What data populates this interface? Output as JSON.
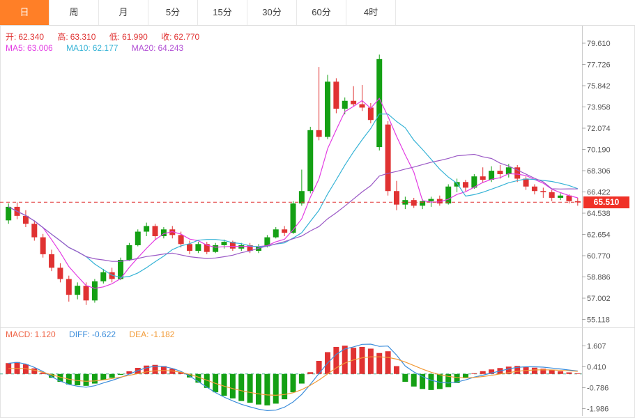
{
  "toolbar": {
    "tabs": [
      {
        "label": "日",
        "active": true
      },
      {
        "label": "周",
        "active": false
      },
      {
        "label": "月",
        "active": false
      },
      {
        "label": "5分",
        "active": false
      },
      {
        "label": "15分",
        "active": false
      },
      {
        "label": "30分",
        "active": false
      },
      {
        "label": "60分",
        "active": false
      },
      {
        "label": "4时",
        "active": false
      }
    ]
  },
  "readout": {
    "ohlc": {
      "open_label": "开:",
      "open": "62.340",
      "high_label": "高:",
      "high": "63.310",
      "low_label": "低:",
      "low": "61.990",
      "close_label": "收:",
      "close": "62.770"
    },
    "ma": {
      "ma5_label": "MA5:",
      "ma5": "63.006",
      "ma10_label": "MA10:",
      "ma10": "62.177",
      "ma20_label": "MA20:",
      "ma20": "64.243"
    },
    "macd": {
      "macd_label": "MACD:",
      "macd": "1.120",
      "diff_label": "DIFF:",
      "diff": "-0.622",
      "dea_label": "DEA:",
      "dea": "-1.182"
    }
  },
  "price_axis": {
    "last_price": "65.510"
  },
  "colors": {
    "up": "#14a014",
    "down": "#e03232",
    "ma5": "#e33ce3",
    "ma10": "#36b3d6",
    "ma20": "#9b59c6",
    "diff": "#3d8edb",
    "dea": "#f29b38",
    "macd_pos": "#e03232",
    "macd_neg": "#14a014",
    "last_price_line": "#e03232",
    "badge_bg": "#f03127",
    "zero_line": "#48b094",
    "axis": "#cccccc",
    "label": "#555555",
    "tab_active_bg": "#ff7f27"
  },
  "chart_data": [
    {
      "type": "candlestick",
      "name": "price-panel",
      "legend": [
        "MA5",
        "MA10",
        "MA20"
      ],
      "ma_periods": [
        5,
        10,
        20
      ],
      "axis_ticks": [
        79.61,
        77.726,
        75.842,
        73.958,
        72.074,
        70.19,
        68.306,
        66.422,
        64.538,
        62.654,
        60.77,
        58.886,
        57.002,
        55.118
      ],
      "ylim": [
        55.118,
        79.61
      ],
      "grid": false,
      "last_price": 65.51,
      "ohlc": [
        [
          63.9,
          65.4,
          63.6,
          65.1
        ],
        [
          65.1,
          65.5,
          64.0,
          64.3
        ],
        [
          64.3,
          64.8,
          63.3,
          63.6
        ],
        [
          63.6,
          63.9,
          62.1,
          62.4
        ],
        [
          62.4,
          62.7,
          60.6,
          60.9
        ],
        [
          60.9,
          61.3,
          59.4,
          59.7
        ],
        [
          59.7,
          60.1,
          58.4,
          58.7
        ],
        [
          58.7,
          59.0,
          56.7,
          57.3
        ],
        [
          57.3,
          58.4,
          56.9,
          58.1
        ],
        [
          58.1,
          58.4,
          56.4,
          56.8
        ],
        [
          56.8,
          58.7,
          56.6,
          58.5
        ],
        [
          58.5,
          59.6,
          58.3,
          59.3
        ],
        [
          59.3,
          59.7,
          58.4,
          58.7
        ],
        [
          58.7,
          60.6,
          58.6,
          60.4
        ],
        [
          60.4,
          61.9,
          60.3,
          61.7
        ],
        [
          61.7,
          63.1,
          61.6,
          62.9
        ],
        [
          62.9,
          63.7,
          62.5,
          63.4
        ],
        [
          63.4,
          63.6,
          62.2,
          62.5
        ],
        [
          62.5,
          63.3,
          62.3,
          63.1
        ],
        [
          63.1,
          63.4,
          62.3,
          62.6
        ],
        [
          62.6,
          62.9,
          61.5,
          61.8
        ],
        [
          61.8,
          62.1,
          60.9,
          61.2
        ],
        [
          61.2,
          62.0,
          61.0,
          61.8
        ],
        [
          61.8,
          62.0,
          60.9,
          61.1
        ],
        [
          61.1,
          61.9,
          61.0,
          61.7
        ],
        [
          61.7,
          62.2,
          61.4,
          62.0
        ],
        [
          62.0,
          62.1,
          61.2,
          61.4
        ],
        [
          61.4,
          61.9,
          61.2,
          61.7
        ],
        [
          61.7,
          61.9,
          61.0,
          61.2
        ],
        [
          61.2,
          61.8,
          61.0,
          61.6
        ],
        [
          61.6,
          62.6,
          61.5,
          62.4
        ],
        [
          62.4,
          63.3,
          62.3,
          63.1
        ],
        [
          63.1,
          63.4,
          62.5,
          62.8
        ],
        [
          62.8,
          65.6,
          62.7,
          65.4
        ],
        [
          65.4,
          68.4,
          65.2,
          66.5
        ],
        [
          66.5,
          72.2,
          66.3,
          71.9
        ],
        [
          71.9,
          77.5,
          71.0,
          71.3
        ],
        [
          71.3,
          76.8,
          71.1,
          76.2
        ],
        [
          76.2,
          76.5,
          73.4,
          73.8
        ],
        [
          73.8,
          74.8,
          73.3,
          74.5
        ],
        [
          74.5,
          75.8,
          74.0,
          74.2
        ],
        [
          74.2,
          75.9,
          73.6,
          73.9
        ],
        [
          73.9,
          74.3,
          72.5,
          72.8
        ],
        [
          70.4,
          78.6,
          70.1,
          78.2
        ],
        [
          72.4,
          72.7,
          66.1,
          66.5
        ],
        [
          66.5,
          67.4,
          64.8,
          65.3
        ],
        [
          65.3,
          66.0,
          64.9,
          65.7
        ],
        [
          65.7,
          65.9,
          65.0,
          65.2
        ],
        [
          65.2,
          65.8,
          64.9,
          65.6
        ],
        [
          65.6,
          66.0,
          65.1,
          65.8
        ],
        [
          65.8,
          66.1,
          65.2,
          65.4
        ],
        [
          65.4,
          67.1,
          65.3,
          66.9
        ],
        [
          66.9,
          67.6,
          66.4,
          67.3
        ],
        [
          67.3,
          67.5,
          66.5,
          66.8
        ],
        [
          66.8,
          68.0,
          66.7,
          67.8
        ],
        [
          67.8,
          68.6,
          67.2,
          67.5
        ],
        [
          67.5,
          68.7,
          67.3,
          68.3
        ],
        [
          68.3,
          68.8,
          67.6,
          68.0
        ],
        [
          68.0,
          68.9,
          67.7,
          68.6
        ],
        [
          68.6,
          68.8,
          67.3,
          67.6
        ],
        [
          67.6,
          67.8,
          66.6,
          66.9
        ],
        [
          66.9,
          67.1,
          66.2,
          66.5
        ],
        [
          66.5,
          66.8,
          65.9,
          66.4
        ],
        [
          66.4,
          66.6,
          65.6,
          65.9
        ],
        [
          65.9,
          66.3,
          65.7,
          66.1
        ],
        [
          66.1,
          66.2,
          65.4,
          65.6
        ],
        [
          65.6,
          65.9,
          65.2,
          65.5
        ]
      ]
    },
    {
      "type": "bar",
      "name": "macd-panel",
      "legend": [
        "MACD",
        "DIFF",
        "DEA"
      ],
      "axis_ticks": [
        1.607,
        0.41,
        -0.786,
        -1.986
      ],
      "ylim": [
        -2.6,
        2.2
      ],
      "grid": false,
      "diff_rule": "diff = dea + bar/2",
      "bars": [
        0.62,
        0.68,
        0.55,
        0.32,
        0.08,
        -0.22,
        -0.45,
        -0.6,
        -0.65,
        -0.68,
        -0.55,
        -0.35,
        -0.22,
        -0.05,
        0.15,
        0.35,
        0.48,
        0.52,
        0.45,
        0.3,
        0.1,
        -0.2,
        -0.5,
        -0.8,
        -1.05,
        -1.25,
        -1.4,
        -1.55,
        -1.65,
        -1.75,
        -1.8,
        -1.7,
        -1.45,
        -1.05,
        -0.55,
        0.1,
        0.75,
        1.25,
        1.55,
        1.62,
        1.5,
        1.55,
        1.45,
        1.2,
        1.3,
        0.45,
        -0.45,
        -0.72,
        -0.86,
        -0.92,
        -0.86,
        -0.76,
        -0.52,
        -0.24,
        0.04,
        0.16,
        0.26,
        0.34,
        0.42,
        0.46,
        0.42,
        0.36,
        0.3,
        0.22,
        0.15,
        0.09,
        0.04
      ],
      "dea": [
        0.3,
        0.32,
        0.3,
        0.22,
        0.1,
        -0.05,
        -0.18,
        -0.3,
        -0.38,
        -0.42,
        -0.4,
        -0.34,
        -0.26,
        -0.18,
        -0.08,
        0.02,
        0.12,
        0.18,
        0.2,
        0.17,
        0.1,
        -0.02,
        -0.18,
        -0.36,
        -0.54,
        -0.7,
        -0.84,
        -0.96,
        -1.06,
        -1.14,
        -1.2,
        -1.22,
        -1.18,
        -1.08,
        -0.9,
        -0.65,
        -0.35,
        0.0,
        0.35,
        0.62,
        0.8,
        0.92,
        0.98,
        0.98,
        0.95,
        0.85,
        0.68,
        0.48,
        0.28,
        0.1,
        -0.04,
        -0.14,
        -0.2,
        -0.22,
        -0.2,
        -0.15,
        -0.08,
        0.0,
        0.08,
        0.15,
        0.2,
        0.23,
        0.24,
        0.23,
        0.21,
        0.18,
        0.15
      ]
    }
  ]
}
